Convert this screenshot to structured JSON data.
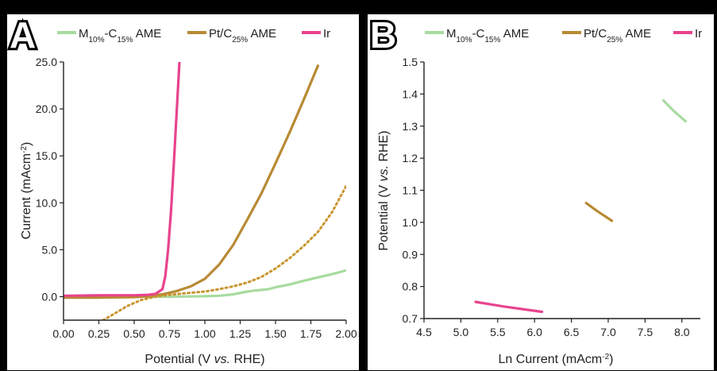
{
  "chart_data": [
    {
      "type": "line",
      "panel_label": "A",
      "xlabel_parts": [
        "Potential (V ",
        "vs.",
        " RHE)"
      ],
      "ylabel_parts": [
        "Current (mAcm",
        "-2",
        ")"
      ],
      "xlim": [
        0,
        2.0
      ],
      "ylim": [
        -2.5,
        25.0
      ],
      "xticks": [
        "0.00",
        "0.25",
        "0.50",
        "0.75",
        "1.00",
        "1.25",
        "1.50",
        "1.75",
        "2.00"
      ],
      "yticks": [
        "0.0",
        "5.0",
        "10.0",
        "15.0",
        "20.0",
        "25.0"
      ],
      "legend": [
        {
          "key": "m10c15",
          "parts": [
            "M",
            "10%",
            "-C",
            "15%",
            " AME"
          ],
          "color": "#a8dba0"
        },
        {
          "key": "ptc25",
          "parts": [
            "Pt/C",
            "25%",
            " AME"
          ],
          "color": "#b88a34"
        },
        {
          "key": "ir",
          "parts": [
            "Ir"
          ],
          "color": "#e8438e"
        }
      ],
      "series": [
        {
          "key": "m10c15",
          "color": "#a8dba0",
          "dash": false,
          "x": [
            0,
            0.25,
            0.5,
            0.75,
            1.0,
            1.1,
            1.2,
            1.3,
            1.35,
            1.45,
            1.5,
            1.6,
            1.7,
            1.8,
            1.9,
            2.0
          ],
          "y": [
            -0.05,
            -0.05,
            0,
            0,
            0.05,
            0.1,
            0.25,
            0.55,
            0.65,
            0.8,
            1.0,
            1.3,
            1.7,
            2.05,
            2.4,
            2.8
          ]
        },
        {
          "key": "ptc25",
          "color": "#b88a34",
          "dash": false,
          "x": [
            0,
            0.25,
            0.5,
            0.6,
            0.7,
            0.8,
            0.9,
            1.0,
            1.1,
            1.2,
            1.3,
            1.4,
            1.5,
            1.6,
            1.7,
            1.8
          ],
          "y": [
            -0.1,
            -0.1,
            -0.05,
            0.05,
            0.25,
            0.6,
            1.1,
            1.9,
            3.4,
            5.5,
            8.2,
            11.0,
            14.2,
            17.5,
            21.0,
            24.6
          ]
        },
        {
          "key": "ptc25_dotted",
          "color": "#c9952e",
          "dash": true,
          "x": [
            0.28,
            0.35,
            0.45,
            0.55,
            0.65,
            0.75,
            0.85,
            1.0,
            1.1,
            1.2,
            1.3,
            1.4,
            1.5,
            1.6,
            1.7,
            1.8,
            1.9,
            2.0
          ],
          "y": [
            -2.5,
            -1.9,
            -1.0,
            -0.35,
            0.0,
            0.2,
            0.35,
            0.55,
            0.8,
            1.1,
            1.5,
            2.1,
            3.0,
            4.1,
            5.4,
            6.9,
            9.0,
            11.8
          ]
        },
        {
          "key": "ir",
          "color": "#e8438e",
          "dash": false,
          "x": [
            0,
            0.3,
            0.5,
            0.6,
            0.65,
            0.7,
            0.72,
            0.74,
            0.76,
            0.78,
            0.8,
            0.82
          ],
          "y": [
            0.1,
            0.15,
            0.15,
            0.2,
            0.3,
            0.8,
            2.2,
            5.0,
            9.0,
            14.0,
            19.5,
            25.0
          ]
        }
      ]
    },
    {
      "type": "line",
      "panel_label": "B",
      "xlabel_parts": [
        "Ln Current (mAcm",
        "-2",
        ")"
      ],
      "ylabel_parts": [
        "Potential (V ",
        "vs.",
        " RHE)"
      ],
      "xlim": [
        4.5,
        8.25
      ],
      "ylim": [
        0.7,
        1.5
      ],
      "xticks": [
        "4.5",
        "5.0",
        "5.5",
        "6.0",
        "6.5",
        "7.0",
        "7.5",
        "8.0"
      ],
      "yticks": [
        "0.7",
        "0.8",
        "0.9",
        "1.0",
        "1.1",
        "1.2",
        "1.3",
        "1.4",
        "1.5"
      ],
      "legend": [
        {
          "key": "m10c15",
          "parts": [
            "M",
            "10%",
            "-C",
            "15%",
            " AME"
          ],
          "color": "#a8dba0"
        },
        {
          "key": "ptc25",
          "parts": [
            "Pt/C",
            "25%",
            " AME"
          ],
          "color": "#b88a34"
        },
        {
          "key": "ir",
          "parts": [
            "Ir"
          ],
          "color": "#e8438e"
        }
      ],
      "series": [
        {
          "key": "m10c15",
          "color": "#a8dba0",
          "dash": false,
          "x": [
            7.75,
            7.9,
            8.05
          ],
          "y": [
            1.38,
            1.345,
            1.315
          ]
        },
        {
          "key": "ptc25",
          "color": "#b88a34",
          "dash": false,
          "x": [
            6.7,
            6.85,
            7.05
          ],
          "y": [
            1.06,
            1.035,
            1.005
          ]
        },
        {
          "key": "ir",
          "color": "#e8438e",
          "dash": false,
          "x": [
            5.2,
            5.6,
            6.1
          ],
          "y": [
            0.752,
            0.737,
            0.721
          ]
        }
      ]
    }
  ]
}
